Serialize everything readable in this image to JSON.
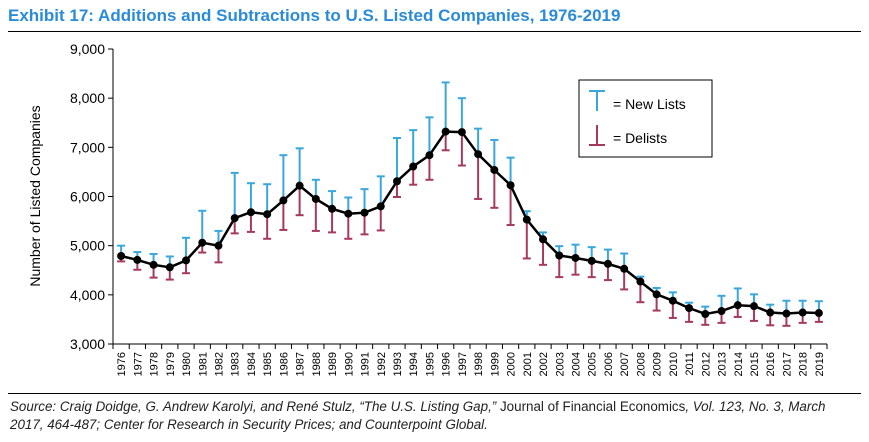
{
  "title": "Exhibit 17: Additions and Subtractions to U.S. Listed Companies, 1976-2019",
  "source": {
    "part1": "Source: Craig Doidge, G. Andrew Karolyi, and René Stulz, “The U.S. Listing Gap,” ",
    "journal": "Journal of Financial Economics",
    "part2": ", Vol. 123, No. 3, March 2017, 464-487; Center for Research in Security Prices; and Counterpoint Global."
  },
  "colors": {
    "title": "#2a8bd8",
    "new_lists": "#3aa7dc",
    "delists": "#a63a5e",
    "line": "#000000"
  },
  "legend": {
    "new_lists_label": "= New Lists",
    "delists_label": "= Delists"
  },
  "chart_data": {
    "type": "line",
    "title": "Exhibit 17: Additions and Subtractions to U.S. Listed Companies, 1976-2019",
    "xlabel": "",
    "ylabel": "Number of Listed Companies",
    "ylim": [
      3000,
      9000
    ],
    "yticks": [
      3000,
      4000,
      5000,
      6000,
      7000,
      8000,
      9000
    ],
    "ytick_labels": [
      "3,000",
      "4,000",
      "5,000",
      "6,000",
      "7,000",
      "8,000",
      "9,000"
    ],
    "categories": [
      "1976",
      "1977",
      "1978",
      "1979",
      "1980",
      "1981",
      "1982",
      "1983",
      "1984",
      "1985",
      "1986",
      "1987",
      "1988",
      "1989",
      "1990",
      "1991",
      "1992",
      "1993",
      "1994",
      "1995",
      "1996",
      "1997",
      "1998",
      "1999",
      "2000",
      "2001",
      "2002",
      "2003",
      "2004",
      "2005",
      "2006",
      "2007",
      "2008",
      "2009",
      "2010",
      "2011",
      "2012",
      "2013",
      "2014",
      "2015",
      "2016",
      "2017",
      "2018",
      "2019"
    ],
    "series": [
      {
        "name": "Listed Companies",
        "values": [
          4790,
          4710,
          4610,
          4560,
          4700,
          5060,
          5000,
          5560,
          5680,
          5640,
          5920,
          6220,
          5950,
          5750,
          5650,
          5670,
          5800,
          6310,
          6610,
          6840,
          7320,
          7310,
          6860,
          6540,
          6230,
          5530,
          5130,
          4800,
          4750,
          4690,
          4630,
          4530,
          4270,
          4010,
          3880,
          3730,
          3610,
          3670,
          3790,
          3770,
          3640,
          3620,
          3640,
          3630
        ]
      },
      {
        "name": "New Lists",
        "values": [
          5000,
          4870,
          4830,
          4780,
          5160,
          5710,
          5300,
          6480,
          6270,
          6250,
          6840,
          6980,
          6340,
          6110,
          5980,
          6150,
          6410,
          7190,
          7350,
          7610,
          8320,
          8000,
          7380,
          7150,
          6790,
          5700,
          5270,
          4990,
          5020,
          4970,
          4920,
          4840,
          4370,
          4140,
          4050,
          3840,
          3760,
          3980,
          4130,
          4010,
          3800,
          3880,
          3880,
          3870
        ]
      },
      {
        "name": "Delists",
        "values": [
          4680,
          4510,
          4350,
          4310,
          4440,
          4860,
          4660,
          5250,
          5280,
          5140,
          5320,
          5620,
          5300,
          5270,
          5140,
          5230,
          5310,
          5990,
          6240,
          6340,
          6940,
          6630,
          5950,
          5770,
          5420,
          4740,
          4610,
          4360,
          4410,
          4360,
          4300,
          4110,
          3850,
          3680,
          3530,
          3450,
          3390,
          3430,
          3550,
          3470,
          3380,
          3370,
          3430,
          3450
        ]
      }
    ],
    "legend": [
      "New Lists",
      "Delists"
    ],
    "legend_position": "top-right",
    "grid": false
  }
}
